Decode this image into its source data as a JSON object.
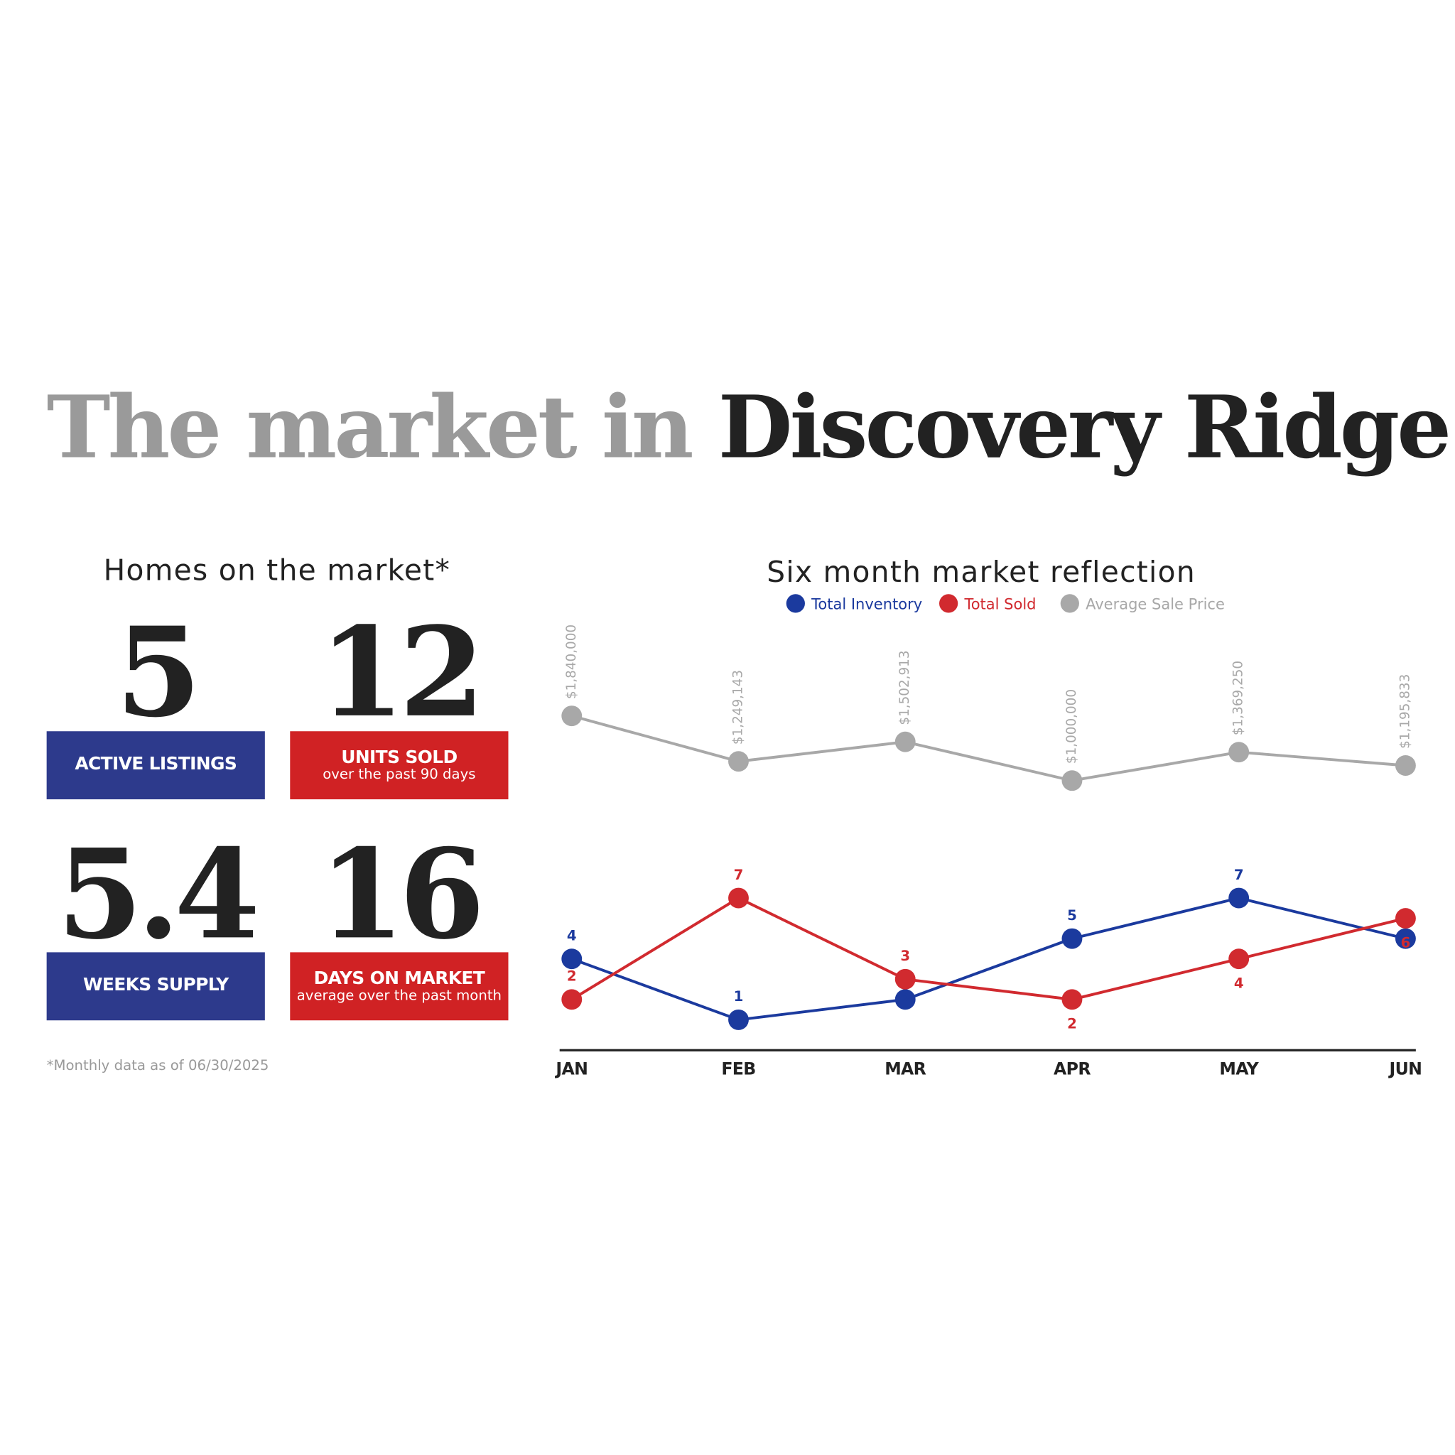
{
  "header": {
    "title_part1": "The market in",
    "title_part2": "Discovery Ridge"
  },
  "stats": {
    "heading": "Homes on the market*",
    "items": [
      {
        "value": 5,
        "label": "ACTIVE LISTINGS"
      },
      {
        "value": 12,
        "label": "UNITS SOLD",
        "sublabel": "over the past 90 days"
      },
      {
        "value": 5.4,
        "label": "WEEKS SUPPLY"
      },
      {
        "value": 16,
        "label": "DAYS ON MARKET",
        "sublabel": "average over the past month"
      }
    ],
    "footnote": "*Monthly data as of 06/30/2025"
  },
  "chart_data": {
    "type": "line",
    "title": "Six month market reflection",
    "categories": [
      "JAN",
      "FEB",
      "MAR",
      "APR",
      "MAY",
      "JUN"
    ],
    "series": [
      {
        "name": "Total Inventory",
        "color": "#1b3a9e",
        "values": [
          4,
          1,
          2,
          5,
          7,
          5
        ]
      },
      {
        "name": "Total Sold",
        "color": "#d12a2f",
        "values": [
          2,
          7,
          3,
          2,
          4,
          6
        ]
      },
      {
        "name": "Average Sale Price",
        "color": "#a8a8a8",
        "axis": "y2",
        "values": [
          1840000,
          1249143,
          1502913,
          1000000,
          1369250,
          1195833
        ],
        "value_labels": [
          "$1,840,000",
          "$1,249,143",
          "$1,502,913",
          "$1,000,000",
          "$1,369,250",
          "$1,195,833"
        ]
      }
    ],
    "ylim": [
      -0.5,
      20
    ],
    "y2lim": [
      -2500000,
      2900000
    ],
    "legend": "top"
  }
}
